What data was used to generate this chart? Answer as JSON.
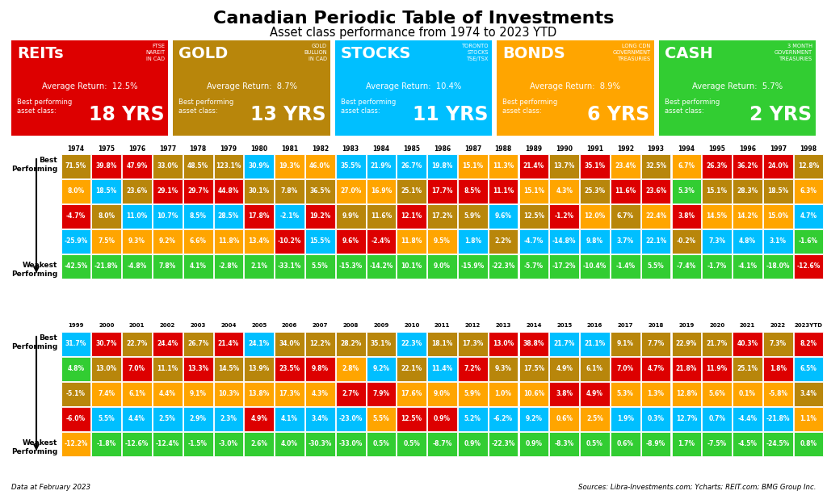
{
  "title": "Canadian Periodic Table of Investments",
  "subtitle": "Asset class performance from 1974 to 2023 YTD",
  "footer_left": "Data at February 2023",
  "footer_right": "Sources: Libra-Investments.com; Ycharts; REIT.com; BMG Group Inc.",
  "legend_boxes": [
    {
      "label": "REITs",
      "sublabel": "FTSE\nNAREIT\nIN CAD",
      "avg": "12.5%",
      "best": "18 YRS",
      "color": "#DD0000"
    },
    {
      "label": "GOLD",
      "sublabel": "GOLD\nBULLION\nIN CAD",
      "avg": "8.7%",
      "best": "13 YRS",
      "color": "#B8860B"
    },
    {
      "label": "STOCKS",
      "sublabel": "TORONTO\nSTOCKS\nTSE/TSX",
      "avg": "10.4%",
      "best": "11 YRS",
      "color": "#00BFFF"
    },
    {
      "label": "BONDS",
      "sublabel": "LONG CDN\nGOVERNMENT\nTREASURIES",
      "avg": "8.9%",
      "best": "6 YRS",
      "color": "#FFA500"
    },
    {
      "label": "CASH",
      "sublabel": "3 MONTH\nGOVERNMENT\nTREASURIES",
      "avg": "5.7%",
      "best": "2 YRS",
      "color": "#32CD32"
    }
  ],
  "colors": {
    "R": "#DD0000",
    "G": "#B8860B",
    "S": "#00BFFF",
    "B": "#FFA500",
    "C": "#32CD32"
  },
  "years_top": [
    "1974",
    "1975",
    "1976",
    "1977",
    "1978",
    "1979",
    "1980",
    "1981",
    "1982",
    "1983",
    "1984",
    "1985",
    "1986",
    "1987",
    "1988",
    "1989",
    "1990",
    "1991",
    "1992",
    "1993",
    "1994",
    "1995",
    "1996",
    "1997",
    "1998"
  ],
  "years_bottom": [
    "1999",
    "2000",
    "2001",
    "2002",
    "2003",
    "2004",
    "2005",
    "2006",
    "2007",
    "2008",
    "2009",
    "2010",
    "2011",
    "2012",
    "2013",
    "2014",
    "2015",
    "2016",
    "2017",
    "2018",
    "2019",
    "2020",
    "2021",
    "2022",
    "2023YTD"
  ],
  "table_top": [
    [
      "71.5%",
      "G",
      "39.8%",
      "R",
      "47.9%",
      "R",
      "33.0%",
      "G",
      "48.5%",
      "G",
      "123.1%",
      "G",
      "30.9%",
      "S",
      "19.3%",
      "B",
      "46.0%",
      "B",
      "35.5%",
      "S",
      "21.9%",
      "S",
      "26.7%",
      "S",
      "19.8%",
      "S",
      "15.1%",
      "B",
      "11.3%",
      "B",
      "21.4%",
      "R",
      "13.7%",
      "G",
      "35.1%",
      "R",
      "23.4%",
      "B",
      "32.5%",
      "G",
      "6.7%",
      "B",
      "26.3%",
      "R",
      "36.2%",
      "R",
      "24.0%",
      "R",
      "12.8%",
      "G"
    ],
    [
      "8.0%",
      "B",
      "18.5%",
      "S",
      "23.6%",
      "G",
      "29.1%",
      "R",
      "29.7%",
      "R",
      "44.8%",
      "R",
      "30.1%",
      "G",
      "7.8%",
      "G",
      "36.5%",
      "G",
      "27.0%",
      "B",
      "16.9%",
      "B",
      "25.1%",
      "G",
      "17.7%",
      "R",
      "8.5%",
      "R",
      "11.1%",
      "R",
      "15.1%",
      "B",
      "4.3%",
      "B",
      "25.3%",
      "G",
      "11.6%",
      "R",
      "23.6%",
      "R",
      "5.3%",
      "C",
      "15.1%",
      "G",
      "28.3%",
      "G",
      "18.5%",
      "G",
      "6.3%",
      "B"
    ],
    [
      "-4.7%",
      "R",
      "8.0%",
      "G",
      "11.0%",
      "S",
      "10.7%",
      "S",
      "8.5%",
      "S",
      "28.5%",
      "S",
      "17.8%",
      "R",
      "-2.1%",
      "S",
      "19.2%",
      "R",
      "9.9%",
      "G",
      "11.6%",
      "G",
      "12.1%",
      "R",
      "17.2%",
      "G",
      "5.9%",
      "G",
      "9.6%",
      "S",
      "12.5%",
      "G",
      "-1.2%",
      "R",
      "12.0%",
      "B",
      "6.7%",
      "G",
      "22.4%",
      "B",
      "3.8%",
      "R",
      "14.5%",
      "B",
      "14.2%",
      "B",
      "15.0%",
      "B",
      "4.7%",
      "S"
    ],
    [
      "-25.9%",
      "S",
      "7.5%",
      "B",
      "9.3%",
      "B",
      "9.2%",
      "B",
      "6.6%",
      "B",
      "11.8%",
      "B",
      "13.4%",
      "B",
      "-10.2%",
      "R",
      "15.5%",
      "S",
      "9.6%",
      "R",
      "-2.4%",
      "R",
      "11.8%",
      "B",
      "9.5%",
      "B",
      "1.8%",
      "S",
      "2.2%",
      "G",
      "-4.7%",
      "S",
      "-14.8%",
      "S",
      "9.8%",
      "S",
      "3.7%",
      "S",
      "22.1%",
      "S",
      "-0.2%",
      "G",
      "7.3%",
      "S",
      "4.8%",
      "S",
      "3.1%",
      "S",
      "-1.6%",
      "C"
    ],
    [
      "-42.5%",
      "C",
      "-21.8%",
      "C",
      "-4.8%",
      "C",
      "7.8%",
      "C",
      "4.1%",
      "C",
      "-2.8%",
      "C",
      "2.1%",
      "C",
      "-33.1%",
      "C",
      "5.5%",
      "C",
      "-15.3%",
      "C",
      "-14.2%",
      "C",
      "10.1%",
      "C",
      "9.0%",
      "C",
      "-15.9%",
      "C",
      "-22.3%",
      "C",
      "-5.7%",
      "C",
      "-17.2%",
      "C",
      "-10.4%",
      "C",
      "-1.4%",
      "C",
      "5.5%",
      "C",
      "-7.4%",
      "C",
      "-1.7%",
      "C",
      "-4.1%",
      "C",
      "-18.0%",
      "C",
      "-12.6%",
      "R"
    ]
  ],
  "table_bottom": [
    [
      "31.7%",
      "S",
      "30.7%",
      "R",
      "22.7%",
      "G",
      "24.4%",
      "R",
      "26.7%",
      "G",
      "21.4%",
      "R",
      "24.1%",
      "S",
      "34.0%",
      "G",
      "12.2%",
      "G",
      "28.2%",
      "G",
      "35.1%",
      "G",
      "22.3%",
      "S",
      "18.1%",
      "G",
      "17.3%",
      "G",
      "13.0%",
      "R",
      "38.8%",
      "R",
      "21.7%",
      "S",
      "21.1%",
      "S",
      "9.1%",
      "G",
      "7.7%",
      "G",
      "22.9%",
      "G",
      "21.7%",
      "G",
      "40.3%",
      "R",
      "7.3%",
      "G",
      "8.2%",
      "R"
    ],
    [
      "4.8%",
      "C",
      "13.0%",
      "G",
      "7.0%",
      "R",
      "11.1%",
      "G",
      "13.3%",
      "R",
      "14.5%",
      "G",
      "13.9%",
      "G",
      "23.5%",
      "R",
      "9.8%",
      "R",
      "2.8%",
      "B",
      "9.2%",
      "S",
      "22.1%",
      "G",
      "11.4%",
      "S",
      "7.2%",
      "R",
      "9.3%",
      "G",
      "17.5%",
      "G",
      "4.9%",
      "G",
      "6.1%",
      "G",
      "7.0%",
      "R",
      "4.7%",
      "R",
      "21.8%",
      "R",
      "11.9%",
      "R",
      "25.1%",
      "G",
      "1.8%",
      "R",
      "6.5%",
      "S"
    ],
    [
      "-5.1%",
      "G",
      "7.4%",
      "B",
      "6.1%",
      "B",
      "4.4%",
      "B",
      "9.1%",
      "B",
      "10.3%",
      "B",
      "13.8%",
      "B",
      "17.3%",
      "B",
      "4.3%",
      "B",
      "2.7%",
      "R",
      "7.9%",
      "R",
      "17.6%",
      "B",
      "9.0%",
      "B",
      "5.9%",
      "B",
      "1.0%",
      "B",
      "10.6%",
      "B",
      "3.8%",
      "R",
      "4.9%",
      "R",
      "5.3%",
      "B",
      "1.3%",
      "B",
      "12.8%",
      "B",
      "5.6%",
      "B",
      "0.1%",
      "B",
      "-5.8%",
      "B",
      "3.4%",
      "G"
    ],
    [
      "-6.0%",
      "R",
      "5.5%",
      "S",
      "4.4%",
      "S",
      "2.5%",
      "S",
      "2.9%",
      "S",
      "2.3%",
      "S",
      "4.9%",
      "R",
      "4.1%",
      "S",
      "3.4%",
      "S",
      "-23.0%",
      "S",
      "5.5%",
      "B",
      "12.5%",
      "R",
      "0.9%",
      "R",
      "5.2%",
      "S",
      "-6.2%",
      "S",
      "9.2%",
      "S",
      "0.6%",
      "B",
      "2.5%",
      "B",
      "1.9%",
      "S",
      "0.3%",
      "S",
      "12.7%",
      "S",
      "0.7%",
      "S",
      "-4.4%",
      "S",
      "-21.8%",
      "S",
      "1.1%",
      "B"
    ],
    [
      "-12.2%",
      "B",
      "-1.8%",
      "C",
      "-12.6%",
      "C",
      "-12.4%",
      "C",
      "-1.5%",
      "C",
      "-3.0%",
      "C",
      "2.6%",
      "C",
      "4.0%",
      "C",
      "-30.3%",
      "C",
      "-33.0%",
      "C",
      "0.5%",
      "C",
      "0.5%",
      "C",
      "-8.7%",
      "C",
      "0.9%",
      "C",
      "-22.3%",
      "C",
      "0.9%",
      "C",
      "-8.3%",
      "C",
      "0.5%",
      "C",
      "0.6%",
      "C",
      "-8.9%",
      "C",
      "1.7%",
      "C",
      "-7.5%",
      "C",
      "-4.5%",
      "C",
      "-24.5%",
      "C",
      "0.8%",
      "C"
    ]
  ]
}
